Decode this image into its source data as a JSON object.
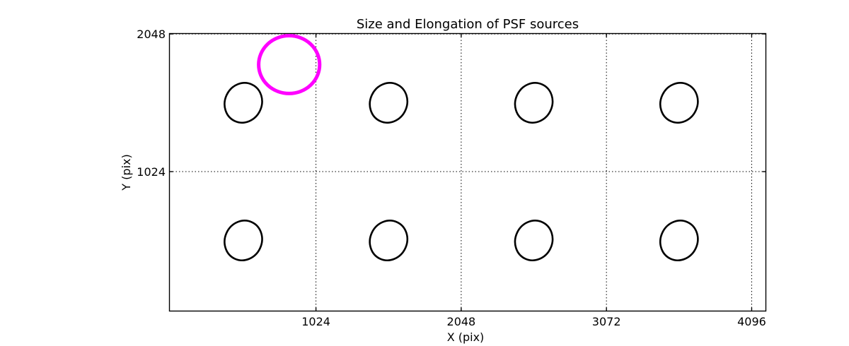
{
  "chart_data": {
    "type": "scatter",
    "title": "Size and Elongation of PSF sources",
    "xlabel": "X (pix)",
    "ylabel": "Y (pix)",
    "xlim": [
      -9,
      4196
    ],
    "ylim": [
      -13,
      2051
    ],
    "xticks": [
      1024,
      2048,
      3072,
      4096
    ],
    "yticks": [
      1024,
      2048
    ],
    "grid": {
      "style": "dotted",
      "color": "#000000",
      "on": true
    },
    "legend_position": "none",
    "source_color": "#000000",
    "sources": [
      {
        "x": 512,
        "y": 1536,
        "a": 150,
        "b": 130,
        "angle_deg": 25
      },
      {
        "x": 1536,
        "y": 1536,
        "a": 150,
        "b": 130,
        "angle_deg": 25
      },
      {
        "x": 2560,
        "y": 1536,
        "a": 150,
        "b": 130,
        "angle_deg": 25
      },
      {
        "x": 3584,
        "y": 1536,
        "a": 150,
        "b": 130,
        "angle_deg": 25
      },
      {
        "x": 512,
        "y": 512,
        "a": 150,
        "b": 130,
        "angle_deg": 25
      },
      {
        "x": 1536,
        "y": 512,
        "a": 150,
        "b": 130,
        "angle_deg": 25
      },
      {
        "x": 2560,
        "y": 512,
        "a": 150,
        "b": 130,
        "angle_deg": 25
      },
      {
        "x": 3584,
        "y": 512,
        "a": 150,
        "b": 130,
        "angle_deg": 25
      }
    ],
    "reference_circle": {
      "x": 835,
      "y": 1820,
      "r": 215,
      "color": "#ff00ff"
    }
  }
}
